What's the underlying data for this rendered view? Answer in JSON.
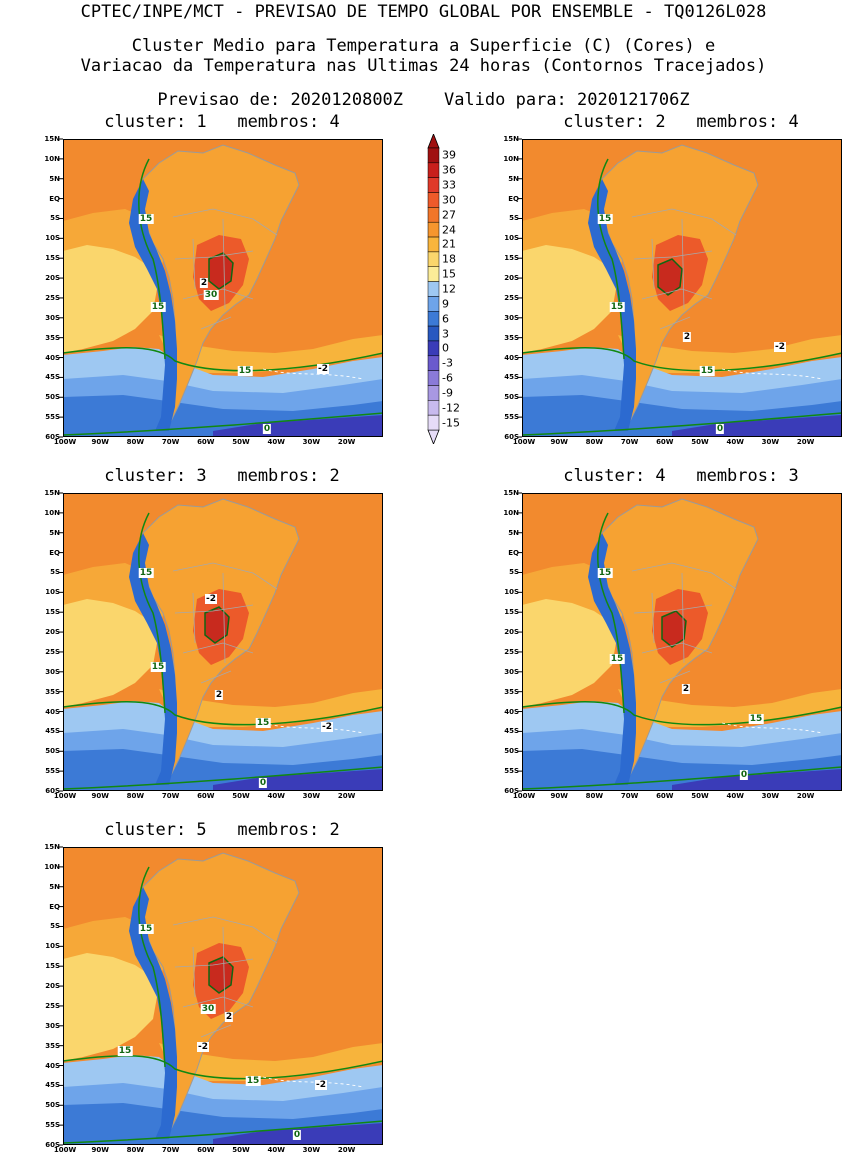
{
  "header": {
    "line1": "CPTEC/INPE/MCT - PREVISAO DE TEMPO GLOBAL POR ENSEMBLE - TQ0126L028",
    "line2": "Cluster Medio para Temperatura a Superficie (C) (Cores) e",
    "line3": "Variacao da Temperatura nas Ultimas 24 horas (Contornos Tracejados)",
    "line4": "Previsao de: 2020120800Z    Valido para: 2020121706Z"
  },
  "lat_labels": [
    "15N",
    "10N",
    "5N",
    "EQ",
    "5S",
    "10S",
    "15S",
    "20S",
    "25S",
    "30S",
    "35S",
    "40S",
    "45S",
    "50S",
    "55S",
    "60S"
  ],
  "lon_labels": [
    "100W",
    "90W",
    "80W",
    "70W",
    "60W",
    "50W",
    "40W",
    "30W",
    "20W"
  ],
  "colorbar": {
    "labels": [
      "39",
      "36",
      "33",
      "30",
      "27",
      "24",
      "21",
      "18",
      "15",
      "12",
      "9",
      "6",
      "3",
      "0",
      "-3",
      "-6",
      "-9",
      "-12",
      "-15"
    ],
    "colors": [
      "#a01010",
      "#c8201c",
      "#e03a2a",
      "#ee5a2a",
      "#f2762a",
      "#f6962e",
      "#f9b53c",
      "#fad66c",
      "#fbec98",
      "#9ec8f2",
      "#6ea4ea",
      "#3c7ad6",
      "#2858c0",
      "#3a3cb8",
      "#6a5acd",
      "#8a7ad8",
      "#a898e2",
      "#c8baee",
      "#e6dcf8"
    ]
  },
  "clusters": [
    {
      "title": "cluster: 1   membros: 4",
      "contour_labels": [
        {
          "t": "15",
          "c": "#116611"
        },
        {
          "t": "15",
          "c": "#116611"
        },
        {
          "t": "2",
          "c": "#000"
        },
        {
          "t": "30",
          "c": "#116611"
        },
        {
          "t": "15",
          "c": "#116611"
        },
        {
          "t": "-2",
          "c": "#000"
        },
        {
          "t": "0",
          "c": "#116611"
        }
      ]
    },
    {
      "title": "cluster: 2   membros: 4",
      "contour_labels": [
        {
          "t": "15",
          "c": "#116611"
        },
        {
          "t": "15",
          "c": "#116611"
        },
        {
          "t": "2",
          "c": "#000"
        },
        {
          "t": "-2",
          "c": "#000"
        },
        {
          "t": "15",
          "c": "#116611"
        },
        {
          "t": "0",
          "c": "#116611"
        }
      ]
    },
    {
      "title": "cluster: 3   membros: 2",
      "contour_labels": [
        {
          "t": "15",
          "c": "#116611"
        },
        {
          "t": "-2",
          "c": "#000"
        },
        {
          "t": "15",
          "c": "#116611"
        },
        {
          "t": "2",
          "c": "#000"
        },
        {
          "t": "15",
          "c": "#116611"
        },
        {
          "t": "-2",
          "c": "#000"
        },
        {
          "t": "0",
          "c": "#116611"
        }
      ]
    },
    {
      "title": "cluster: 4   membros: 3",
      "contour_labels": [
        {
          "t": "15",
          "c": "#116611"
        },
        {
          "t": "15",
          "c": "#116611"
        },
        {
          "t": "2",
          "c": "#000"
        },
        {
          "t": "15",
          "c": "#116611"
        },
        {
          "t": "0",
          "c": "#116611"
        }
      ]
    },
    {
      "title": "cluster: 5   membros: 2",
      "contour_labels": [
        {
          "t": "15",
          "c": "#116611"
        },
        {
          "t": "30",
          "c": "#116611"
        },
        {
          "t": "2",
          "c": "#000"
        },
        {
          "t": "15",
          "c": "#116611"
        },
        {
          "t": "-2",
          "c": "#000"
        },
        {
          "t": "15",
          "c": "#116611"
        },
        {
          "t": "-2",
          "c": "#000"
        },
        {
          "t": "0",
          "c": "#116611"
        }
      ]
    }
  ]
}
